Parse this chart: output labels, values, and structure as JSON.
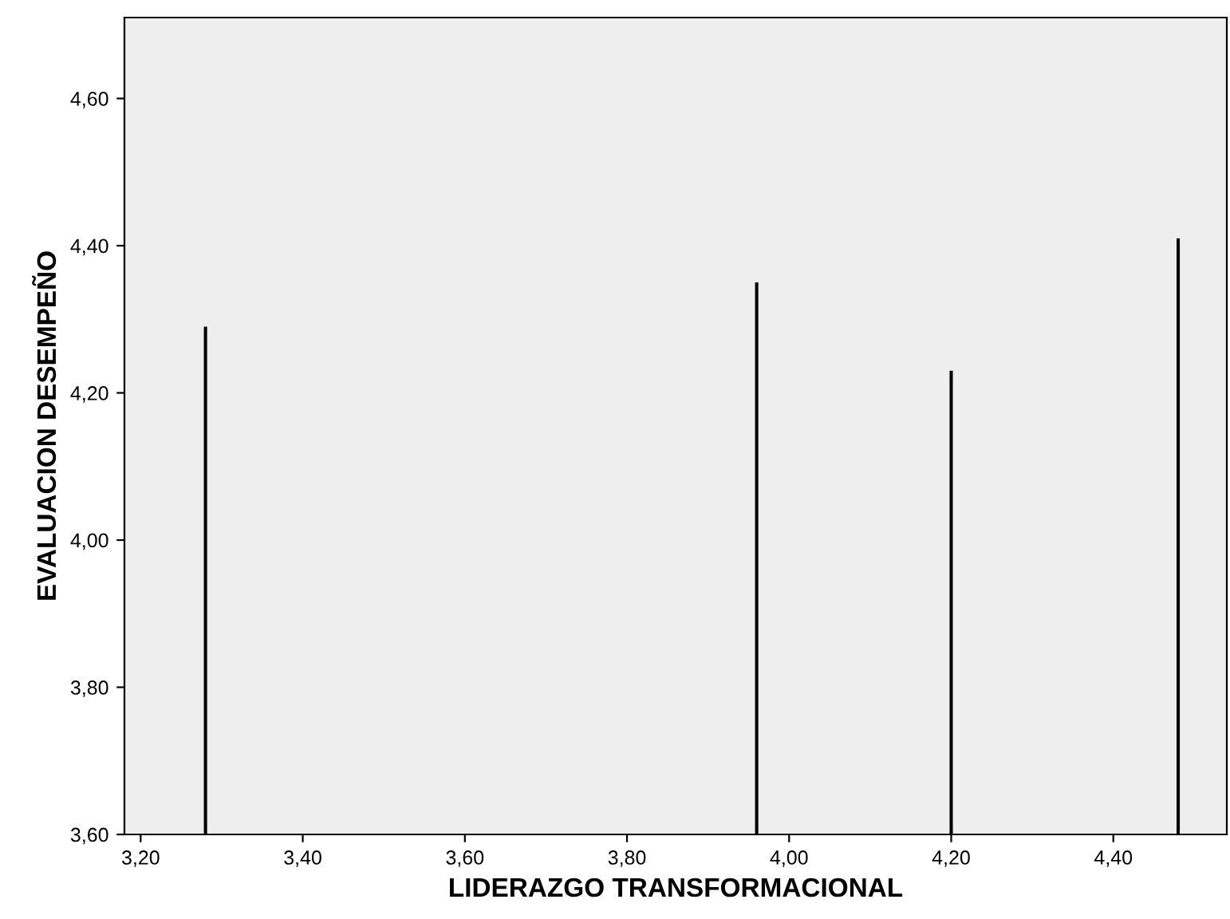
{
  "chart_data": {
    "type": "bar",
    "xlabel": "LIDERAZGO TRANSFORMACIONAL",
    "ylabel": "EVALUACION DESEMPEÑO",
    "x": [
      3.28,
      3.96,
      4.2,
      4.48
    ],
    "values": [
      4.29,
      4.35,
      4.23,
      4.41
    ],
    "color": "#000000",
    "xlim": [
      3.18,
      4.54
    ],
    "ylim": [
      3.6,
      4.71
    ],
    "xticks": [
      {
        "value": 3.2,
        "label": "3,20"
      },
      {
        "value": 3.4,
        "label": "3,40"
      },
      {
        "value": 3.6,
        "label": "3,60"
      },
      {
        "value": 3.8,
        "label": "3,80"
      },
      {
        "value": 4.0,
        "label": "4,00"
      },
      {
        "value": 4.2,
        "label": "4,20"
      },
      {
        "value": 4.4,
        "label": "4,40"
      }
    ],
    "yticks": [
      {
        "value": 3.6,
        "label": "3,60"
      },
      {
        "value": 3.8,
        "label": "3,80"
      },
      {
        "value": 4.0,
        "label": "4,00"
      },
      {
        "value": 4.2,
        "label": "4,20"
      },
      {
        "value": 4.4,
        "label": "4,40"
      },
      {
        "value": 4.6,
        "label": "4,60"
      }
    ],
    "grid": false
  }
}
